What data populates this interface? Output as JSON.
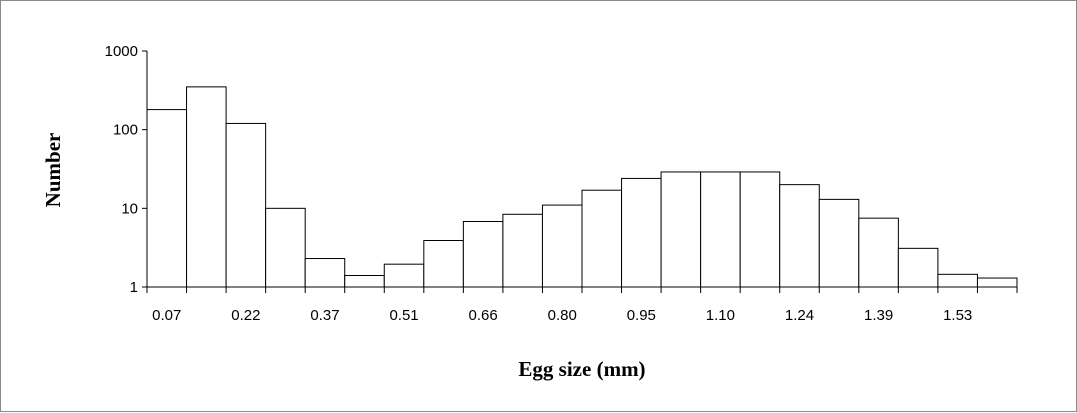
{
  "chart_data": {
    "type": "bar",
    "bar_style": "histogram",
    "xlabel": "Egg size (mm)",
    "ylabel": "Number",
    "y_scale": "log",
    "ylim": [
      1,
      1000
    ],
    "y_ticks": [
      1,
      10,
      100,
      1000
    ],
    "y_tick_labels": [
      "1",
      "10",
      "100",
      "1000"
    ],
    "x_tick_labels": [
      "0.07",
      "0.22",
      "0.37",
      "0.51",
      "0.66",
      "0.80",
      "0.95",
      "1.10",
      "1.24",
      "1.39",
      "1.53"
    ],
    "bin_count": 22,
    "values": [
      180,
      350,
      120,
      10,
      2.3,
      1.4,
      1.95,
      3.9,
      6.8,
      8.4,
      11,
      17,
      24,
      29,
      29,
      29,
      20,
      13,
      7.5,
      3.1,
      1.45,
      1.3
    ],
    "grid": false,
    "legend": "none",
    "colors": {
      "bar_fill": "#ffffff",
      "bar_stroke": "#000000",
      "axis": "#000000",
      "border": "#8a8a8a"
    }
  }
}
